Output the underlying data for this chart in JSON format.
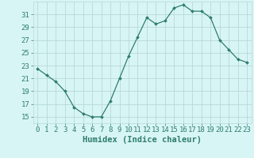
{
  "x": [
    0,
    1,
    2,
    3,
    4,
    5,
    6,
    7,
    8,
    9,
    10,
    11,
    12,
    13,
    14,
    15,
    16,
    17,
    18,
    19,
    20,
    21,
    22,
    23
  ],
  "y": [
    22.5,
    21.5,
    20.5,
    19.0,
    16.5,
    15.5,
    15.0,
    15.0,
    17.5,
    21.0,
    24.5,
    27.5,
    30.5,
    29.5,
    30.0,
    32.0,
    32.5,
    31.5,
    31.5,
    30.5,
    27.0,
    25.5,
    24.0,
    23.5
  ],
  "line_color": "#2e7d6e",
  "marker": "D",
  "marker_size": 2.0,
  "bg_color": "#d8f5f5",
  "grid_color": "#b8d8d8",
  "xlabel": "Humidex (Indice chaleur)",
  "ylabel_ticks": [
    15,
    17,
    19,
    21,
    23,
    25,
    27,
    29,
    31
  ],
  "xlim": [
    -0.5,
    23.5
  ],
  "ylim": [
    14.0,
    33.0
  ],
  "tick_color": "#2e7d6e",
  "label_fontsize": 7.5,
  "tick_fontsize": 6.5
}
